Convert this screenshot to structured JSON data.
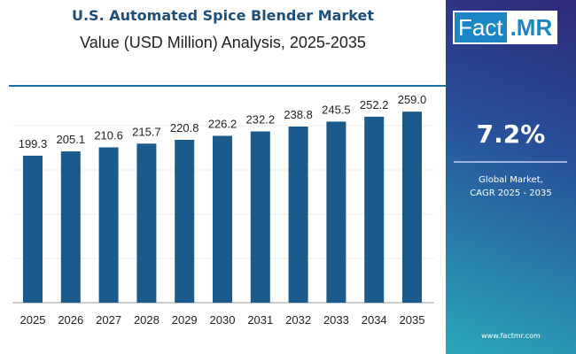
{
  "header": {
    "title": "U.S. Automated Spice Blender Market",
    "subtitle": "Value (USD Million) Analysis, 2025-2035"
  },
  "brand": {
    "logo_left": "Fact",
    "logo_right": ".MR",
    "website": "www.factmr.com"
  },
  "sidebar": {
    "cagr_value": "7.2%",
    "cagr_label_line1": "Global Market,",
    "cagr_label_line2": "CAGR 2025 - 2035"
  },
  "colors": {
    "bar": "#1a5a8c",
    "panel_top": "#2e2a7a",
    "panel_bottom": "#2aa8b8",
    "title": "#1d4f7c"
  },
  "chart_data": {
    "type": "bar",
    "title": "U.S. Automated Spice Blender Market",
    "subtitle": "Value (USD Million) Analysis, 2025-2035",
    "categories": [
      "2025",
      "2026",
      "2027",
      "2028",
      "2029",
      "2030",
      "2031",
      "2032",
      "2033",
      "2034",
      "2035"
    ],
    "values": [
      199.3,
      205.1,
      210.6,
      215.7,
      220.8,
      226.2,
      232.2,
      238.8,
      245.5,
      252.2,
      259.0
    ],
    "labels": [
      "199.3",
      "205.1",
      "210.6",
      "215.7",
      "220.8",
      "226.2",
      "232.2",
      "238.8",
      "245.5",
      "252.2",
      "259.0"
    ],
    "xlabel": "",
    "ylabel": "",
    "ylim": [
      0,
      300
    ],
    "grid": true,
    "legend": "none"
  }
}
